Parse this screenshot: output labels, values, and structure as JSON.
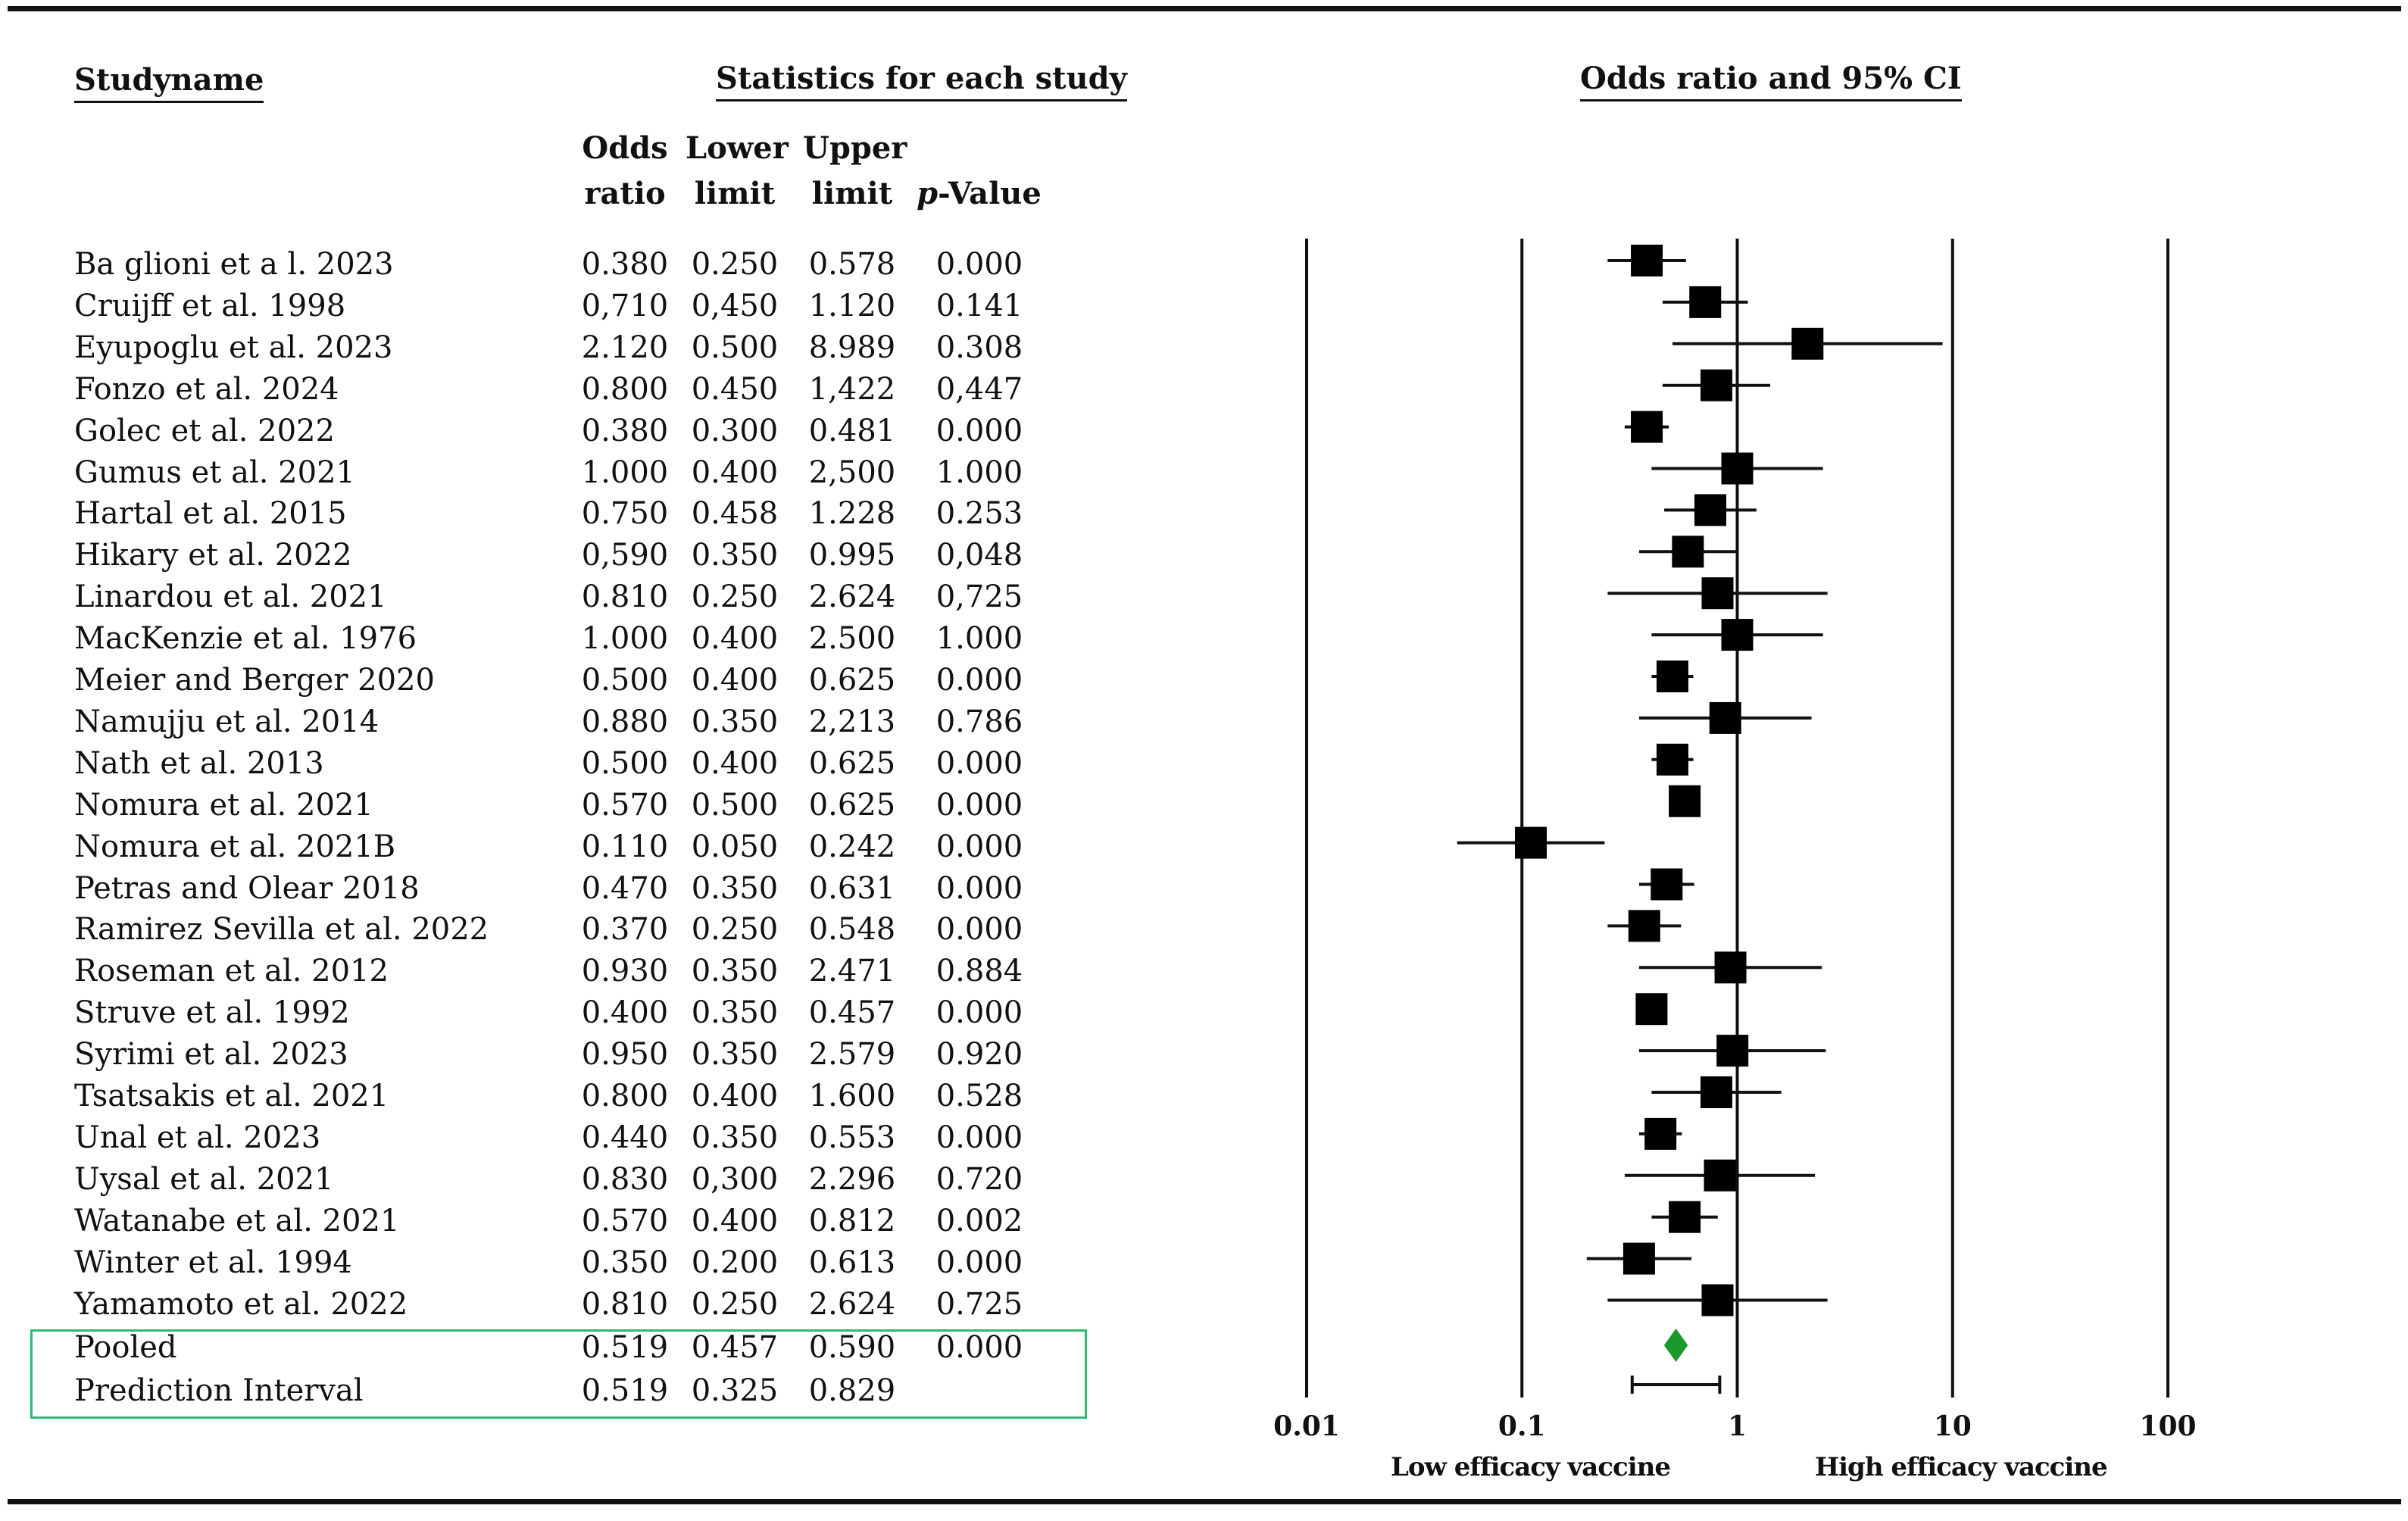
{
  "headers": {
    "study_name": "Studyname",
    "stats": "Statistics for each study",
    "plot": "Odds ratio and 95% CI",
    "odds_ratio": [
      "Odds",
      "ratio"
    ],
    "lower_limit": [
      "Lower",
      "limit"
    ],
    "upper_limit": [
      "Upper",
      "limit"
    ],
    "p_prefix": "p",
    "p_suffix": "-Value"
  },
  "rows": [
    {
      "study": "Ba glioni et a l. 2023",
      "or": "0.380",
      "lower": "0.250",
      "upper": "0.578",
      "p": "0.000"
    },
    {
      "study": "Cruijff et al. 1998",
      "or": "0,710",
      "lower": "0,450",
      "upper": "1.120",
      "p": "0.141"
    },
    {
      "study": "Eyupoglu et al. 2023",
      "or": "2.120",
      "lower": "0.500",
      "upper": "8.989",
      "p": "0.308"
    },
    {
      "study": "Fonzo et al. 2024",
      "or": "0.800",
      "lower": "0.450",
      "upper": "1,422",
      "p": "0,447"
    },
    {
      "study": "Golec et al. 2022",
      "or": "0.380",
      "lower": "0.300",
      "upper": "0.481",
      "p": "0.000"
    },
    {
      "study": "Gumus et al. 2021",
      "or": "1.000",
      "lower": "0.400",
      "upper": "2,500",
      "p": "1.000"
    },
    {
      "study": "Hartal et al. 2015",
      "or": "0.750",
      "lower": "0.458",
      "upper": "1.228",
      "p": "0.253"
    },
    {
      "study": "Hikary et al. 2022",
      "or": "0,590",
      "lower": "0.350",
      "upper": "0.995",
      "p": "0,048"
    },
    {
      "study": "Linardou et al. 2021",
      "or": "0.810",
      "lower": "0.250",
      "upper": "2.624",
      "p": "0,725"
    },
    {
      "study": "MacKenzie et al. 1976",
      "or": "1.000",
      "lower": "0.400",
      "upper": "2.500",
      "p": "1.000"
    },
    {
      "study": "Meier and Berger 2020",
      "or": "0.500",
      "lower": "0.400",
      "upper": "0.625",
      "p": "0.000"
    },
    {
      "study": "Namujju et al. 2014",
      "or": "0.880",
      "lower": "0.350",
      "upper": "2,213",
      "p": "0.786"
    },
    {
      "study": "Nath et al. 2013",
      "or": "0.500",
      "lower": "0.400",
      "upper": "0.625",
      "p": "0.000"
    },
    {
      "study": "Nomura et al. 2021",
      "or": "0.570",
      "lower": "0.500",
      "upper": "0.625",
      "p": "0.000"
    },
    {
      "study": "Nomura et al. 2021B",
      "or": "0.110",
      "lower": "0.050",
      "upper": "0.242",
      "p": "0.000"
    },
    {
      "study": "Petras and Olear 2018",
      "or": "0.470",
      "lower": "0.350",
      "upper": "0.631",
      "p": "0.000"
    },
    {
      "study": "Ramirez Sevilla et al. 2022",
      "or": "0.370",
      "lower": "0.250",
      "upper": "0.548",
      "p": "0.000"
    },
    {
      "study": "Roseman et al. 2012",
      "or": "0.930",
      "lower": "0.350",
      "upper": "2.471",
      "p": "0.884"
    },
    {
      "study": "Struve et al. 1992",
      "or": "0.400",
      "lower": "0.350",
      "upper": "0.457",
      "p": "0.000"
    },
    {
      "study": "Syrimi et al. 2023",
      "or": "0.950",
      "lower": "0.350",
      "upper": "2.579",
      "p": "0.920"
    },
    {
      "study": "Tsatsakis et al. 2021",
      "or": "0.800",
      "lower": "0.400",
      "upper": "1.600",
      "p": "0.528"
    },
    {
      "study": "Unal et al. 2023",
      "or": "0.440",
      "lower": "0.350",
      "upper": "0.553",
      "p": "0.000"
    },
    {
      "study": "Uysal et al. 2021",
      "or": "0.830",
      "lower": "0,300",
      "upper": "2.296",
      "p": "0.720"
    },
    {
      "study": "Watanabe et al. 2021",
      "or": "0.570",
      "lower": "0.400",
      "upper": "0.812",
      "p": "0.002"
    },
    {
      "study": "Winter et al. 1994",
      "or": "0.350",
      "lower": "0.200",
      "upper": "0.613",
      "p": "0.000"
    },
    {
      "study": "Yamamoto et al. 2022",
      "or": "0.810",
      "lower": "0.250",
      "upper": "2.624",
      "p": "0.725"
    }
  ],
  "summary_rows": [
    {
      "study": "Pooled",
      "or": "0.519",
      "lower": "0.457",
      "upper": "0.590",
      "p": "0.000"
    },
    {
      "study": "Prediction Interval",
      "or": "0.519",
      "lower": "0.325",
      "upper": "0.829",
      "p": ""
    }
  ],
  "chart_data": {
    "type": "scatter",
    "x_scale": "log",
    "xlim": [
      0.01,
      100
    ],
    "x_ticks": [
      "0.01",
      "0.1",
      "1",
      "10",
      "100"
    ],
    "x_tick_values": [
      0.01,
      0.1,
      1,
      10,
      100
    ],
    "reference_line": 1,
    "left_label": "Low efficacy vaccine",
    "right_label": "High efficacy vaccine",
    "points": [
      {
        "or": 0.38,
        "lower": 0.25,
        "upper": 0.578
      },
      {
        "or": 0.71,
        "lower": 0.45,
        "upper": 1.12
      },
      {
        "or": 2.12,
        "lower": 0.5,
        "upper": 8.989
      },
      {
        "or": 0.8,
        "lower": 0.45,
        "upper": 1.422
      },
      {
        "or": 0.38,
        "lower": 0.3,
        "upper": 0.481
      },
      {
        "or": 1.0,
        "lower": 0.4,
        "upper": 2.5
      },
      {
        "or": 0.75,
        "lower": 0.458,
        "upper": 1.228
      },
      {
        "or": 0.59,
        "lower": 0.35,
        "upper": 0.995
      },
      {
        "or": 0.81,
        "lower": 0.25,
        "upper": 2.624
      },
      {
        "or": 1.0,
        "lower": 0.4,
        "upper": 2.5
      },
      {
        "or": 0.5,
        "lower": 0.4,
        "upper": 0.625
      },
      {
        "or": 0.88,
        "lower": 0.35,
        "upper": 2.213
      },
      {
        "or": 0.5,
        "lower": 0.4,
        "upper": 0.625
      },
      {
        "or": 0.57,
        "lower": 0.5,
        "upper": 0.625
      },
      {
        "or": 0.11,
        "lower": 0.05,
        "upper": 0.242
      },
      {
        "or": 0.47,
        "lower": 0.35,
        "upper": 0.631
      },
      {
        "or": 0.37,
        "lower": 0.25,
        "upper": 0.548
      },
      {
        "or": 0.93,
        "lower": 0.35,
        "upper": 2.471
      },
      {
        "or": 0.4,
        "lower": 0.35,
        "upper": 0.457
      },
      {
        "or": 0.95,
        "lower": 0.35,
        "upper": 2.579
      },
      {
        "or": 0.8,
        "lower": 0.4,
        "upper": 1.6
      },
      {
        "or": 0.44,
        "lower": 0.35,
        "upper": 0.553
      },
      {
        "or": 0.83,
        "lower": 0.3,
        "upper": 2.296
      },
      {
        "or": 0.57,
        "lower": 0.4,
        "upper": 0.812
      },
      {
        "or": 0.35,
        "lower": 0.2,
        "upper": 0.613
      },
      {
        "or": 0.81,
        "lower": 0.25,
        "upper": 2.624
      }
    ],
    "pooled": {
      "or": 0.519,
      "lower": 0.457,
      "upper": 0.59
    },
    "prediction_interval": {
      "or": 0.519,
      "lower": 0.325,
      "upper": 0.829
    },
    "colors": {
      "marker": "#000000",
      "pooled": "#1a9a2e",
      "summary_box": "#2eb872"
    }
  }
}
